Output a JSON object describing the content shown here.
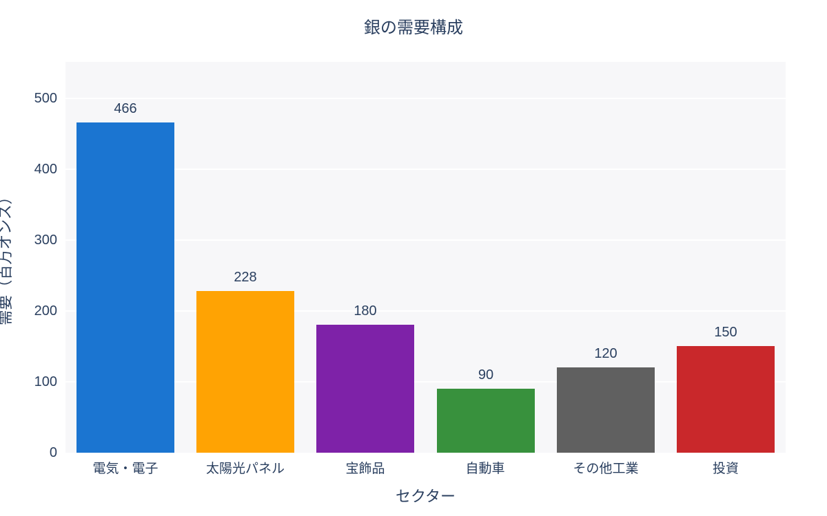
{
  "chart_data": {
    "type": "bar",
    "title": "銀の需要構成",
    "xlabel": "セクター",
    "ylabel": "需要（百万オンス）",
    "categories": [
      "電気・電子",
      "太陽光パネル",
      "宝飾品",
      "自動車",
      "その他工業",
      "投資"
    ],
    "values": [
      466,
      228,
      180,
      90,
      120,
      150
    ],
    "bar_colors": [
      "#1b75d1",
      "#ffa303",
      "#7e22a8",
      "#38913d",
      "#606060",
      "#c9282b"
    ],
    "value_labels": [
      466,
      228,
      180,
      90,
      120,
      150
    ],
    "yticks": [
      0,
      100,
      200,
      300,
      400,
      500
    ],
    "ylim": [
      0,
      551
    ],
    "grid": "horizontal-major",
    "legend": "none"
  },
  "style": {
    "text_color": "#2a3f5f",
    "page_bg": "#ffffff",
    "plot_bg": "#f7f7f9",
    "grid_color": "#ffffff"
  }
}
